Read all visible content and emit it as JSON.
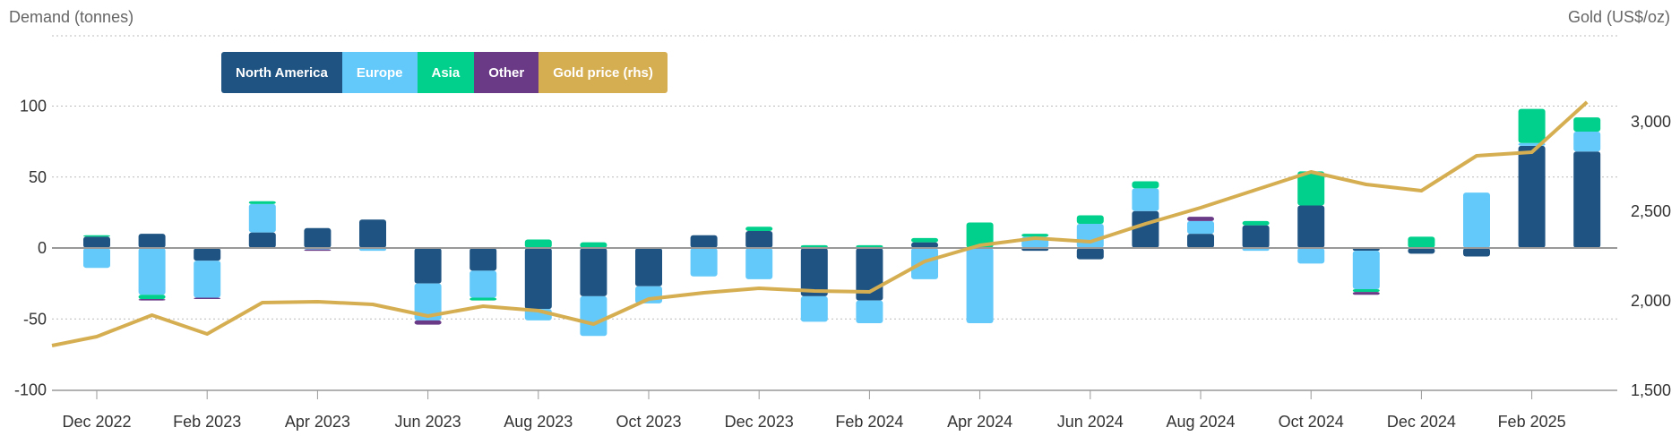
{
  "chart_data": {
    "type": "bar",
    "left_axis_title": "Demand (tonnes)",
    "right_axis_title": "Gold (US$/oz)",
    "y_left": {
      "min": -100,
      "max": 100,
      "ticks": [
        "100",
        "50",
        "0",
        "-50",
        "-100"
      ],
      "tick_values": [
        100,
        50,
        0,
        -50,
        -100
      ]
    },
    "y_right": {
      "min": 1500,
      "max": 3100,
      "ticks": [
        "3,000",
        "2,500",
        "2,000",
        "1,500"
      ],
      "tick_values": [
        3000,
        2500,
        2000,
        1500
      ]
    },
    "x_ticks": [
      "Dec 2022",
      "Feb 2023",
      "Apr 2023",
      "Jun 2023",
      "Aug 2023",
      "Oct 2023",
      "Dec 2023",
      "Feb 2024",
      "Apr 2024",
      "Jun 2024",
      "Aug 2024",
      "Oct 2024",
      "Dec 2024",
      "Feb 2025"
    ],
    "categories": [
      "Dec 2022",
      "Jan 2023",
      "Feb 2023",
      "Mar 2023",
      "Apr 2023",
      "May 2023",
      "Jun 2023",
      "Jul 2023",
      "Aug 2023",
      "Sep 2023",
      "Oct 2023",
      "Nov 2023",
      "Dec 2023",
      "Jan 2024",
      "Feb 2024",
      "Mar 2024",
      "Apr 2024",
      "May 2024",
      "Jun 2024",
      "Jul 2024",
      "Aug 2024",
      "Sep 2024",
      "Oct 2024",
      "Nov 2024",
      "Dec 2024",
      "Jan 2025",
      "Feb 2025",
      "Mar 2025"
    ],
    "legend_placement": "top-left",
    "grid": true,
    "series": [
      {
        "name": "North America",
        "color": "#1f5482",
        "kind": "bar",
        "values": [
          8,
          10,
          -9,
          11,
          14,
          20,
          -25,
          -16,
          -43,
          -34,
          -27,
          9,
          12,
          -34,
          -37,
          4,
          0,
          -2,
          -8,
          26,
          10,
          16,
          30,
          -2,
          -4,
          -6,
          72,
          68
        ]
      },
      {
        "name": "Europe",
        "color": "#62c9fa",
        "kind": "bar",
        "values": [
          -14,
          -33,
          -26,
          20,
          -1,
          -2,
          -26,
          -19,
          -8,
          -28,
          -12,
          -20,
          -22,
          -18,
          -16,
          -22,
          -53,
          8,
          17,
          16,
          9,
          -2,
          -11,
          -27,
          0,
          39,
          2,
          14
        ]
      },
      {
        "name": "Asia",
        "color": "#00d08b",
        "kind": "bar",
        "values": [
          1,
          -3,
          0,
          2,
          0,
          0,
          0,
          -2,
          6,
          4,
          0,
          0,
          3,
          2,
          2,
          3,
          18,
          2,
          6,
          5,
          0,
          3,
          24,
          -2,
          8,
          0,
          24,
          10
        ]
      },
      {
        "name": "Other",
        "color": "#6a3a87",
        "kind": "bar",
        "values": [
          0,
          -1,
          -1,
          0,
          -1,
          0,
          -3,
          0,
          0,
          0,
          0,
          0,
          0,
          0,
          0,
          0,
          0,
          0,
          0,
          0,
          3,
          0,
          0,
          -2,
          0,
          0,
          0,
          0
        ]
      },
      {
        "name": "Gold price (rhs)",
        "color": "#d6ae52",
        "kind": "line",
        "values": [
          1800,
          1920,
          1815,
          1990,
          1995,
          1980,
          1915,
          1970,
          1945,
          1870,
          2010,
          2045,
          2070,
          2055,
          2050,
          2220,
          2310,
          2350,
          2330,
          2430,
          2520,
          2620,
          2720,
          2650,
          2615,
          2810,
          2830,
          3110
        ]
      }
    ]
  }
}
